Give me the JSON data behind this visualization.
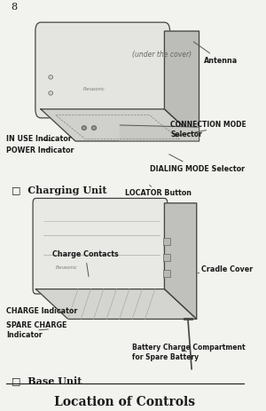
{
  "title": "Location of Controls",
  "bg_color": "#f2f2ee",
  "text_color": "#1a1a1a",
  "page_number": "8",
  "section1_header": "□  Base Unit",
  "section2_header": "□  Charging Unit"
}
